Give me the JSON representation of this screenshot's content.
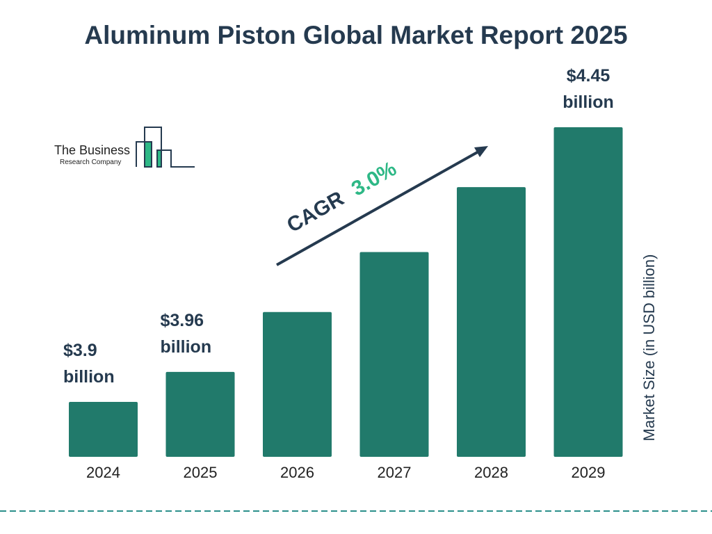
{
  "title": "Aluminum Piston Global Market Report 2025",
  "logo": {
    "line1": "The Business",
    "line2": "Research Company"
  },
  "cagr": {
    "label": "CAGR",
    "value": "3.0%"
  },
  "colors": {
    "bar": "#217a6b",
    "title": "#253a4f",
    "accent": "#2eb886",
    "dash": "#2a8f8a"
  },
  "chart_data": {
    "type": "bar",
    "title": "Aluminum Piston Global Market Report 2025",
    "categories": [
      "2024",
      "2025",
      "2026",
      "2027",
      "2028",
      "2029"
    ],
    "values": [
      3.9,
      3.96,
      4.08,
      4.2,
      4.33,
      4.45
    ],
    "data_labels": [
      {
        "line1": "$3.9",
        "line2": "billion"
      },
      {
        "line1": "$3.96",
        "line2": "billion"
      },
      null,
      null,
      null,
      {
        "line1": "$4.45",
        "line2": "billion"
      }
    ],
    "xlabel": "",
    "ylabel": "Market Size (in USD billion)",
    "grid": false,
    "legend": "none"
  }
}
